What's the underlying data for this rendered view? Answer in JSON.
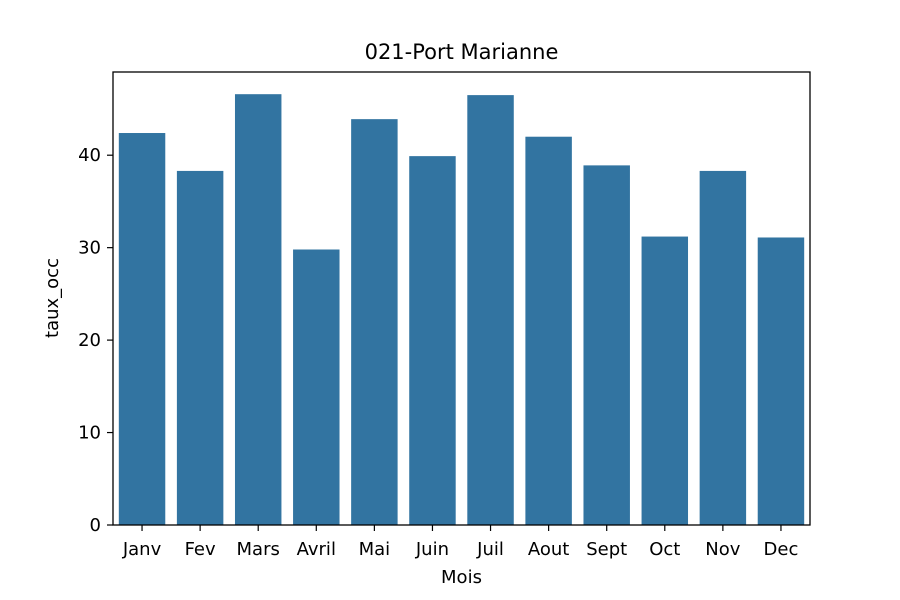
{
  "chart_data": {
    "type": "bar",
    "title": "021-Port Marianne",
    "xlabel": "Mois",
    "ylabel": "taux_occ",
    "categories": [
      "Janv",
      "Fev",
      "Mars",
      "Avril",
      "Mai",
      "Juin",
      "Juil",
      "Aout",
      "Sept",
      "Oct",
      "Nov",
      "Dec"
    ],
    "values": [
      42.4,
      38.3,
      46.6,
      29.8,
      43.9,
      39.9,
      46.5,
      42.0,
      38.9,
      31.2,
      38.3,
      31.1
    ],
    "ylim": [
      0,
      49
    ],
    "yticks": [
      0,
      10,
      20,
      30,
      40
    ],
    "grid": false,
    "bar_color": "#3274a1"
  }
}
